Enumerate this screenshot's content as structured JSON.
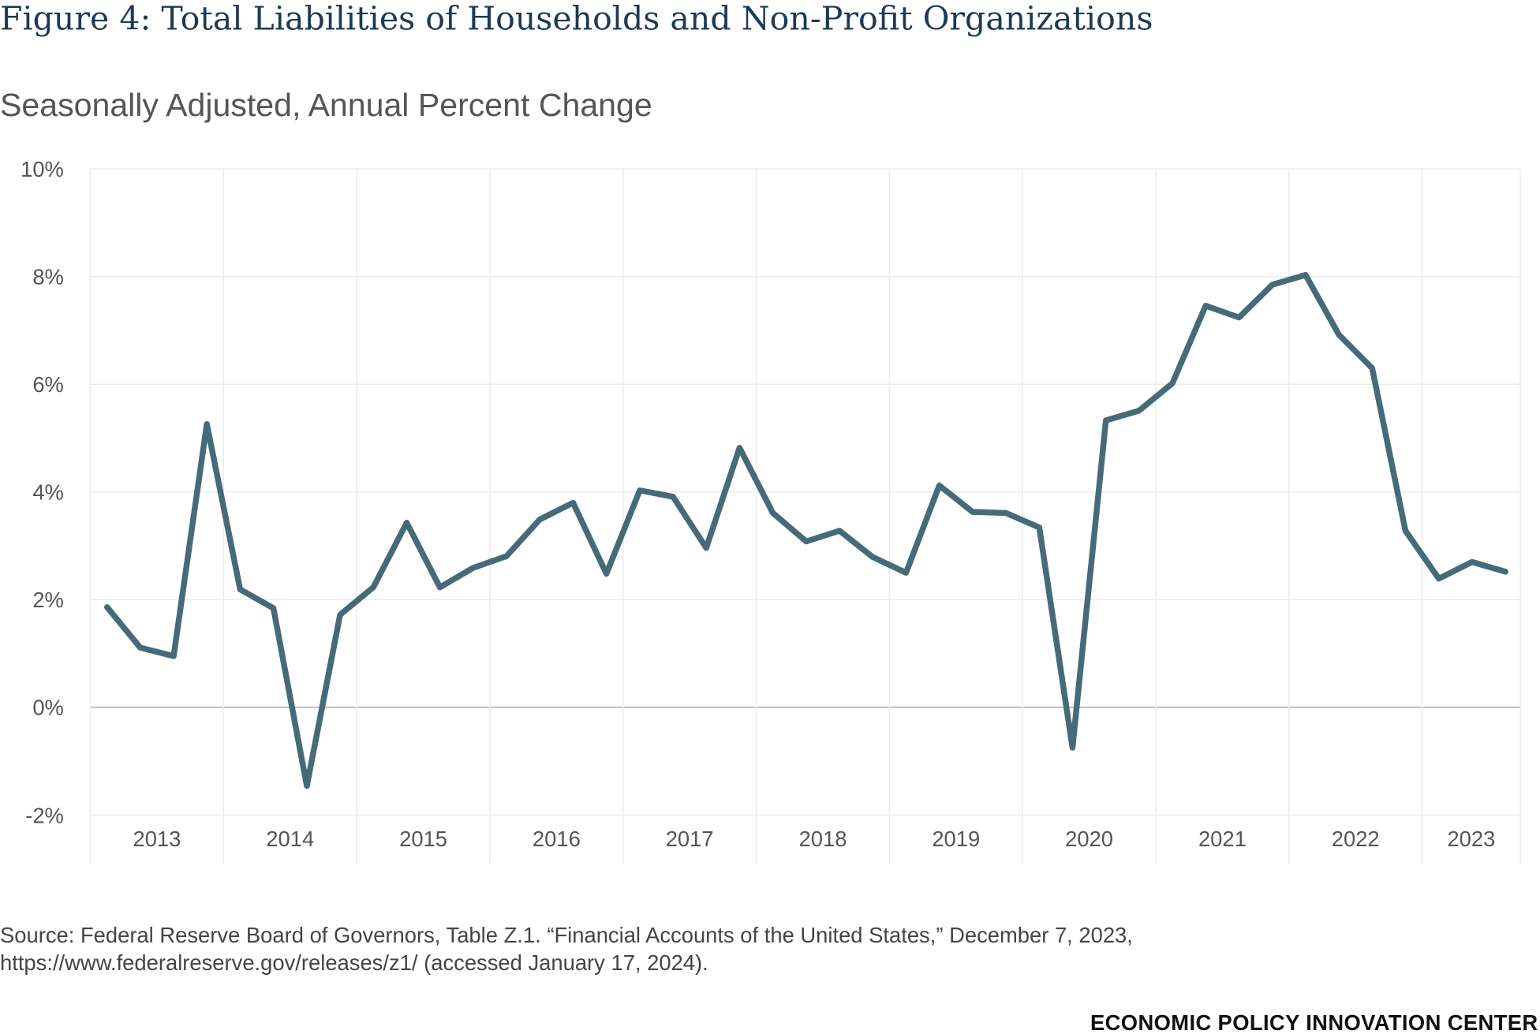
{
  "header": {
    "title": "Figure 4: Total Liabilities of Households and Non-Profit Organizations",
    "subtitle": "Seasonally Adjusted, Annual Percent Change"
  },
  "footer": {
    "source_line1": "Source: Federal Reserve Board of Governors, Table Z.1. “Financial Accounts of the United States,” December 7, 2023,",
    "source_line2": "https://www.federalreserve.gov/releases/z1/ (accessed January 17, 2024).",
    "brand": "ECONOMIC POLICY INNOVATION CENTER"
  },
  "chart_data": {
    "type": "line",
    "title": "Figure 4: Total Liabilities of Households and Non-Profit Organizations",
    "subtitle": "Seasonally Adjusted, Annual Percent Change",
    "xlabel": "",
    "ylabel": "",
    "ylim": [
      -2,
      10
    ],
    "y_ticks": [
      10,
      8,
      6,
      4,
      2,
      0,
      -2
    ],
    "y_tick_labels": [
      "10%",
      "8%",
      "6%",
      "4%",
      "2%",
      "0%",
      "-2%"
    ],
    "x_tick_labels": [
      "2013",
      "2014",
      "2015",
      "2016",
      "2017",
      "2018",
      "2019",
      "2020",
      "2021",
      "2022",
      "2023"
    ],
    "x_frequency": "quarterly",
    "x_range": [
      "2013 Q1",
      "2023 Q3"
    ],
    "grid": true,
    "line_color": "#476a78",
    "series": [
      {
        "values": [
          1.86,
          1.11,
          0.95,
          5.26,
          2.19,
          1.84,
          -1.46,
          1.72,
          2.23,
          3.43,
          2.23,
          2.59,
          2.81,
          3.49,
          3.8,
          2.48,
          4.03,
          3.91,
          2.96,
          4.82,
          3.61,
          3.08,
          3.28,
          2.79,
          2.5,
          4.12,
          3.63,
          3.61,
          3.34,
          -0.75,
          5.33,
          5.51,
          6.02,
          7.46,
          7.24,
          7.85,
          8.03,
          6.92,
          6.3,
          3.28,
          2.39,
          2.7,
          2.52
        ]
      }
    ]
  }
}
